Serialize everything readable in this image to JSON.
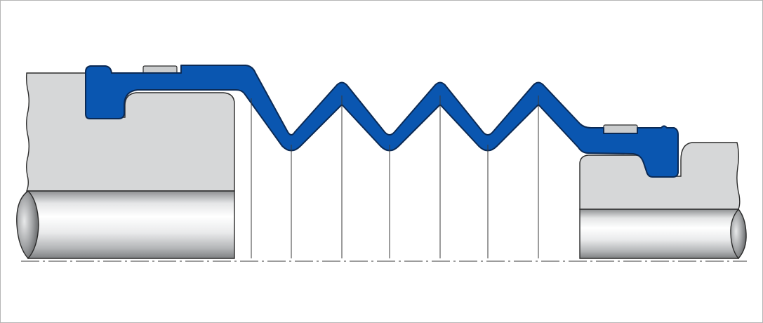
{
  "diagram": {
    "colors": {
      "boot": "#0a56b0",
      "boot_outline": "#0b2a55",
      "housing": "#d5d6d7",
      "clamp": "#c9cbcc",
      "outline": "#2b2b2b",
      "centerline": "#3a3a3a",
      "frame": "#b5b5b5"
    },
    "parts": [
      "left-housing",
      "left-shaft",
      "right-housing",
      "right-shaft",
      "bellows-boot",
      "left-clamp",
      "right-clamp",
      "centerline"
    ]
  }
}
